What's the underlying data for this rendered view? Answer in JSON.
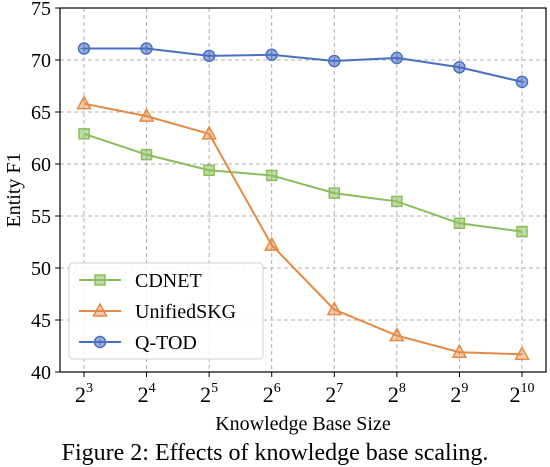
{
  "chart_data": {
    "type": "line",
    "x_tick_base": "2",
    "x_exponents": [
      "3",
      "4",
      "5",
      "6",
      "7",
      "8",
      "9",
      "10"
    ],
    "x": [
      3,
      4,
      5,
      6,
      7,
      8,
      9,
      10
    ],
    "xlabel": "Knowledge Base Size",
    "ylabel": "Entity F1",
    "ylim": [
      40,
      75
    ],
    "yticks": [
      "40",
      "45",
      "50",
      "55",
      "60",
      "65",
      "70",
      "75"
    ],
    "grid": true,
    "legend_position": "lower-left",
    "series": [
      {
        "name": "CDNET",
        "color": "#8bbd5c",
        "marker": "square",
        "values": [
          62.9,
          60.9,
          59.4,
          58.9,
          57.2,
          56.4,
          54.3,
          53.5
        ]
      },
      {
        "name": "UnifiedSKG",
        "color": "#e58a44",
        "marker": "triangle",
        "values": [
          65.8,
          64.6,
          62.9,
          52.2,
          46.0,
          43.5,
          41.9,
          41.7
        ]
      },
      {
        "name": "Q-TOD",
        "color": "#4a6fc1",
        "marker": "circle",
        "values": [
          71.1,
          71.1,
          70.4,
          70.5,
          69.9,
          70.2,
          69.3,
          67.9
        ]
      }
    ]
  },
  "caption": "Figure 2: Effects of knowledge base scaling."
}
